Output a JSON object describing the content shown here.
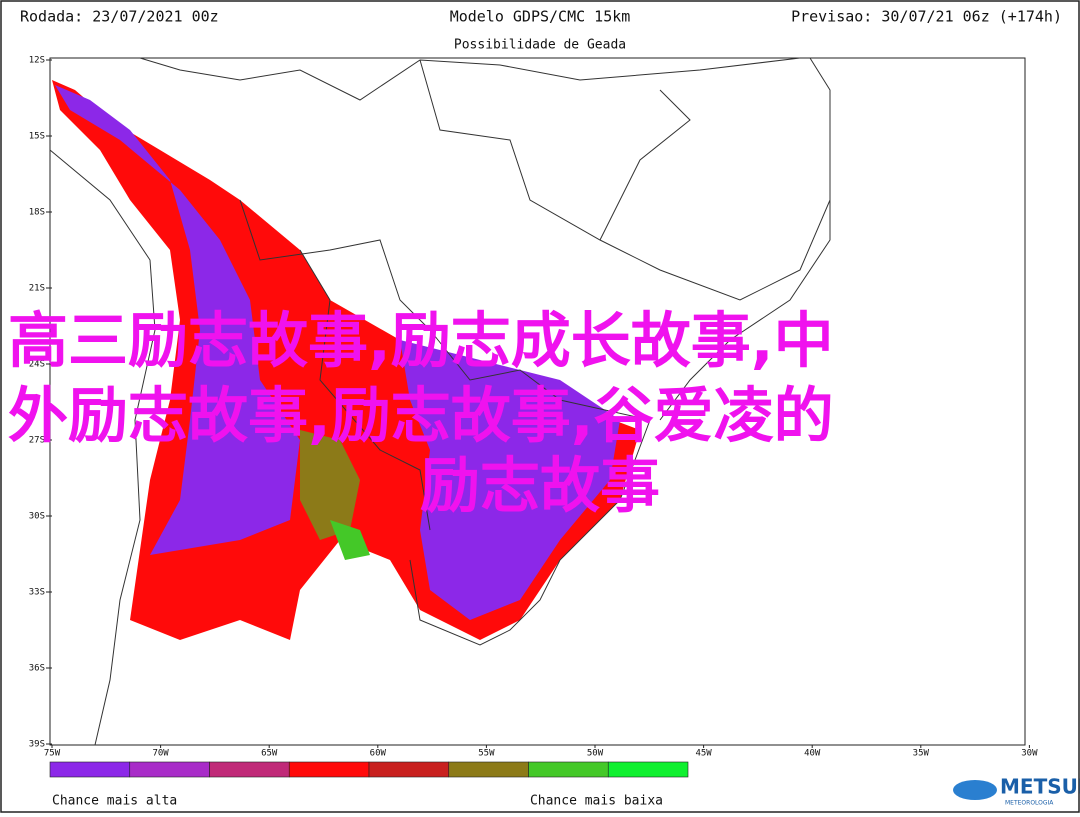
{
  "header": {
    "run": "Rodada: 23/07/2021 00z",
    "model": "Modelo GDPS/CMC 15km",
    "forecast": "Previsao: 30/07/21 06z (+174h)",
    "title": "Possibilidade de Geada"
  },
  "map": {
    "lat_labels": [
      "12S",
      "15S",
      "18S",
      "21S",
      "24S",
      "27S",
      "30S",
      "33S",
      "36S",
      "39S"
    ],
    "lon_labels": [
      "75W",
      "70W",
      "65W",
      "60W",
      "55W",
      "50W",
      "45W",
      "40W",
      "35W",
      "30W"
    ]
  },
  "legend": {
    "colors": [
      "#8c28e8",
      "#a82cc8",
      "#c02a78",
      "#ff0a0a",
      "#c8201e",
      "#8c7a18",
      "#44c828",
      "#10f030"
    ],
    "high": "Chance mais alta",
    "low": "Chance mais baixa"
  },
  "logo": {
    "name": "METSUL",
    "sub": "METEOROLOGIA"
  },
  "overlay": {
    "lines": [
      "高三励志故事,励志成长故事,中",
      "外励志故事,励志故事,谷爱凌的",
      "励志故事"
    ]
  }
}
